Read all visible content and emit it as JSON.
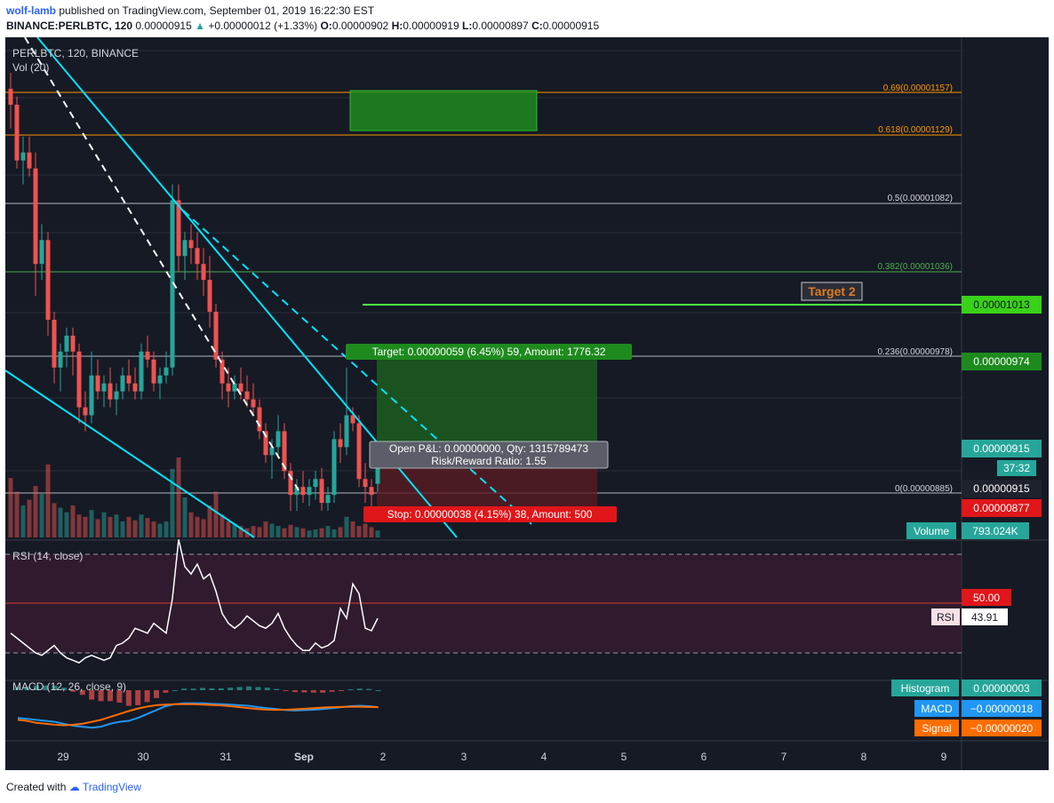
{
  "header": {
    "publisher": "wolf-lamb",
    "published_text": "published on TradingView.com, September 01, 2019 16:22:30 EST",
    "symbol_line": "BINANCE:PERLBTC, 120",
    "last": "0.00000915",
    "change": "+0.00000012 (+1.33%)",
    "open_label": "O:",
    "open": "0.00000902",
    "high_label": "H:",
    "high": "0.00000919",
    "low_label": "L:",
    "low": "0.00000897",
    "close_label": "C:",
    "close": "0.00000915"
  },
  "panes": {
    "main_legend": "PERLBTC, 120, BINANCE",
    "vol_legend": "Vol (20)",
    "rsi_legend": "RSI (14, close)",
    "macd_legend": "MACD (12, 26, close, 9)"
  },
  "fib_levels": [
    {
      "label": "0.69(0.00001157)",
      "price": 1.157e-05,
      "color": "#ff9800"
    },
    {
      "label": "0.618(0.00001129)",
      "price": 1.129e-05,
      "color": "#ff9800"
    },
    {
      "label": "0.5(0.00001082)",
      "price": 1.082e-05,
      "color": "#b2b5be"
    },
    {
      "label": "0.382(0.00001036)",
      "price": 1.036e-05,
      "color": "#4caf50"
    },
    {
      "label": "0.236(0.00000978)",
      "price": 9.78e-06,
      "color": "#b2b5be"
    },
    {
      "label": "0(0.00000885)",
      "price": 8.85e-06,
      "color": "#b2b5be"
    }
  ],
  "annotations": {
    "target2": "Target 2",
    "position_target": "Target: 0.00000059 (6.45%) 59, Amount: 1776.32",
    "position_pnl": "Open P&L: 0.00000000, Qty: 1315789473",
    "position_rr": "Risk/Reward Ratio: 1.55",
    "position_stop": "Stop: 0.00000038 (4.15%) 38, Amount: 500"
  },
  "price_axis_labels": {
    "green_line": "0.00001013",
    "target": "0.00000974",
    "last": "0.00000915",
    "countdown": "37:32",
    "entry": "0.00000915",
    "stop": "0.00000877",
    "volume_name": "Volume",
    "volume_value": "793.024K",
    "rsi_level": "50.00",
    "rsi_name": "RSI",
    "rsi_value": "43.91",
    "hist_name": "Histogram",
    "hist_value": "0.00000003",
    "macd_name": "MACD",
    "macd_value": "−0.00000018",
    "signal_name": "Signal",
    "signal_value": "−0.00000020"
  },
  "time_axis": [
    "29",
    "30",
    "31",
    "Sep",
    "2",
    "3",
    "4",
    "5",
    "6",
    "7",
    "8",
    "9"
  ],
  "chart_data": {
    "type": "candlestick",
    "symbol": "PERLBTC",
    "interval": "120",
    "price_range": [
      8.7e-06,
      1.16e-05
    ],
    "ohlc": [
      [
        1.15e-05,
        1.16e-05,
        1.125e-05,
        1.14e-05
      ],
      [
        1.14e-05,
        1.145e-05,
        1.1e-05,
        1.105e-05
      ],
      [
        1.105e-05,
        1.12e-05,
        1.09e-05,
        1.11e-05
      ],
      [
        1.11e-05,
        1.12e-05,
        1.095e-05,
        1.1e-05
      ],
      [
        1.1e-05,
        1.11e-05,
        1.02e-05,
        1.04e-05
      ],
      [
        1.04e-05,
        1.065e-05,
        1.03e-05,
        1.055e-05
      ],
      [
        1.055e-05,
        1.06e-05,
        9.95e-06,
        1.005e-05
      ],
      [
        1.005e-05,
        1.01e-05,
        9.65e-06,
        9.75e-06
      ],
      [
        9.75e-06,
        9.9e-06,
        9.6e-06,
        9.85e-06
      ],
      [
        9.85e-06,
        1e-05,
        9.75e-06,
        9.95e-06
      ],
      [
        9.95e-06,
        1e-05,
        9.7e-06,
        9.85e-06
      ],
      [
        9.85e-06,
        9.9e-06,
        9.4e-06,
        9.5e-06
      ],
      [
        9.5e-06,
        9.6e-06,
        9.35e-06,
        9.45e-06
      ],
      [
        9.45e-06,
        9.85e-06,
        9.4e-06,
        9.7e-06
      ],
      [
        9.7e-06,
        9.8e-06,
        9.55e-06,
        9.6e-06
      ],
      [
        9.6e-06,
        9.7e-06,
        9.5e-06,
        9.65e-06
      ],
      [
        9.65e-06,
        9.75e-06,
        9.5e-06,
        9.55e-06
      ],
      [
        9.55e-06,
        9.65e-06,
        9.45e-06,
        9.6e-06
      ],
      [
        9.6e-06,
        9.75e-06,
        9.55e-06,
        9.7e-06
      ],
      [
        9.7e-06,
        9.8e-06,
        9.6e-06,
        9.65e-06
      ],
      [
        9.65e-06,
        9.75e-06,
        9.55e-06,
        9.6e-06
      ],
      [
        9.6e-06,
        9.9e-06,
        9.55e-06,
        9.85e-06
      ],
      [
        9.85e-06,
        9.95e-06,
        9.75e-06,
        9.8e-06
      ],
      [
        9.8e-06,
        9.85e-06,
        9.6e-06,
        9.65e-06
      ],
      [
        9.65e-06,
        9.75e-06,
        9.55e-06,
        9.7e-06
      ],
      [
        9.7e-06,
        9.85e-06,
        9.65e-06,
        9.75e-06
      ],
      [
        9.75e-06,
        1.09e-05,
        9.7e-06,
        1.08e-05
      ],
      [
        1.08e-05,
        1.09e-05,
        1.035e-05,
        1.045e-05
      ],
      [
        1.045e-05,
        1.06e-05,
        1.03e-05,
        1.055e-05
      ],
      [
        1.055e-05,
        1.065e-05,
        1.04e-05,
        1.05e-05
      ],
      [
        1.05e-05,
        1.06e-05,
        1.03e-05,
        1.04e-05
      ],
      [
        1.04e-05,
        1.05e-05,
        1.02e-05,
        1.03e-05
      ],
      [
        1.03e-05,
        1.045e-05,
        1e-05,
        1.01e-05
      ],
      [
        1.01e-05,
        1.015e-05,
        9.75e-06,
        9.8e-06
      ],
      [
        9.8e-06,
        9.85e-06,
        9.55e-06,
        9.65e-06
      ],
      [
        9.65e-06,
        9.75e-06,
        9.5e-06,
        9.6e-06
      ],
      [
        9.6e-06,
        9.7e-06,
        9.55e-06,
        9.65e-06
      ],
      [
        9.65e-06,
        9.75e-06,
        9.55e-06,
        9.6e-06
      ],
      [
        9.6e-06,
        9.7e-06,
        9.5e-06,
        9.55e-06
      ],
      [
        9.55e-06,
        9.65e-06,
        9.45e-06,
        9.5e-06
      ],
      [
        9.5e-06,
        9.55e-06,
        9.3e-06,
        9.35e-06
      ],
      [
        9.35e-06,
        9.4e-06,
        9.15e-06,
        9.2e-06
      ],
      [
        9.2e-06,
        9.3e-06,
        9.05e-06,
        9.25e-06
      ],
      [
        9.25e-06,
        9.45e-06,
        9.2e-06,
        9.35e-06
      ],
      [
        9.35e-06,
        9.4e-06,
        9.05e-06,
        9.1e-06
      ],
      [
        9.1e-06,
        9.15e-06,
        8.85e-06,
        8.95e-06
      ],
      [
        8.95e-06,
        9.05e-06,
        8.85e-06,
        9e-06
      ],
      [
        9e-06,
        9.1e-06,
        8.9e-06,
        8.95e-06
      ],
      [
        8.95e-06,
        9.05e-06,
        8.88e-06,
        9e-06
      ],
      [
        9e-06,
        9.1e-06,
        8.92e-06,
        9.05e-06
      ],
      [
        9.05e-06,
        9.12e-06,
        8.85e-06,
        8.9e-06
      ],
      [
        8.9e-06,
        9e-06,
        8.85e-06,
        8.95e-06
      ],
      [
        8.95e-06,
        9.35e-06,
        8.9e-06,
        9.3e-06
      ],
      [
        9.3e-06,
        9.4e-06,
        9.15e-06,
        9.25e-06
      ],
      [
        9.25e-06,
        9.75e-06,
        9.2e-06,
        9.45e-06
      ],
      [
        9.45e-06,
        9.5e-06,
        9.35e-06,
        9.4e-06
      ],
      [
        9.4e-06,
        9.45e-06,
        9e-06,
        9.05e-06
      ],
      [
        9.05e-06,
        9.15e-06,
        8.9e-06,
        9e-06
      ],
      [
        9e-06,
        9.05e-06,
        8.85e-06,
        8.95e-06
      ],
      [
        9.02e-06,
        9.19e-06,
        8.97e-06,
        9.15e-06
      ]
    ],
    "volume": [
      52,
      40,
      28,
      33,
      45,
      38,
      64,
      30,
      26,
      22,
      28,
      20,
      18,
      24,
      16,
      22,
      18,
      20,
      14,
      18,
      15,
      20,
      17,
      14,
      12,
      14,
      60,
      70,
      35,
      22,
      18,
      16,
      28,
      40,
      20,
      14,
      12,
      10,
      8,
      10,
      9,
      14,
      12,
      10,
      8,
      11,
      9,
      8,
      6,
      7,
      8,
      10,
      7,
      9,
      18,
      14,
      10,
      12,
      9,
      6
    ],
    "rsi": {
      "range": [
        0,
        100
      ],
      "levels": [
        70,
        50,
        30
      ],
      "values": [
        38,
        36,
        34,
        32,
        30,
        29,
        31,
        33,
        30,
        28,
        27,
        26,
        28,
        29,
        28,
        27,
        28,
        33,
        34,
        36,
        40,
        39,
        38,
        42,
        40,
        38,
        52,
        76,
        65,
        62,
        66,
        60,
        62,
        55,
        46,
        42,
        40,
        42,
        45,
        43,
        41,
        40,
        42,
        46,
        40,
        36,
        33,
        31,
        31,
        34,
        32,
        33,
        35,
        48,
        44,
        58,
        54,
        40,
        39,
        44
      ]
    },
    "macd": {
      "macd": [
        -0.6,
        -0.65,
        -0.7,
        -0.75,
        -0.8,
        -0.9,
        -1.0,
        -1.05,
        -1.1,
        -1.05,
        -0.9,
        -0.8,
        -0.75,
        -0.6,
        -0.4,
        -0.2,
        0.0,
        0.1,
        0.15,
        0.15,
        0.15,
        0.12,
        0.1,
        0.08,
        0.05,
        0.02,
        -0.05,
        -0.1,
        -0.15,
        -0.2,
        -0.22,
        -0.2,
        -0.18,
        -0.15,
        -0.1,
        -0.05,
        0.0,
        0.02,
        0.0,
        -0.05
      ],
      "signal": [
        -0.7,
        -0.75,
        -0.85,
        -0.9,
        -0.95,
        -0.98,
        -0.95,
        -0.9,
        -0.8,
        -0.7,
        -0.55,
        -0.4,
        -0.25,
        -0.12,
        -0.02,
        0.05,
        0.08,
        0.1,
        0.1,
        0.1,
        0.08,
        0.06,
        0.04,
        0.0,
        -0.05,
        -0.1,
        -0.15,
        -0.18,
        -0.19,
        -0.18,
        -0.16,
        -0.13,
        -0.1,
        -0.07,
        -0.05,
        -0.04,
        -0.03,
        -0.03,
        -0.04,
        -0.05
      ]
    }
  },
  "colors": {
    "bg": "#161a25",
    "up": "#26a69a",
    "down": "#ef5350",
    "trendline": "#00e5ff",
    "green_line": "#4cff3f",
    "rsi_line": "#ffffff",
    "macd_line": "#2196f3",
    "signal_line": "#ff6d00"
  }
}
